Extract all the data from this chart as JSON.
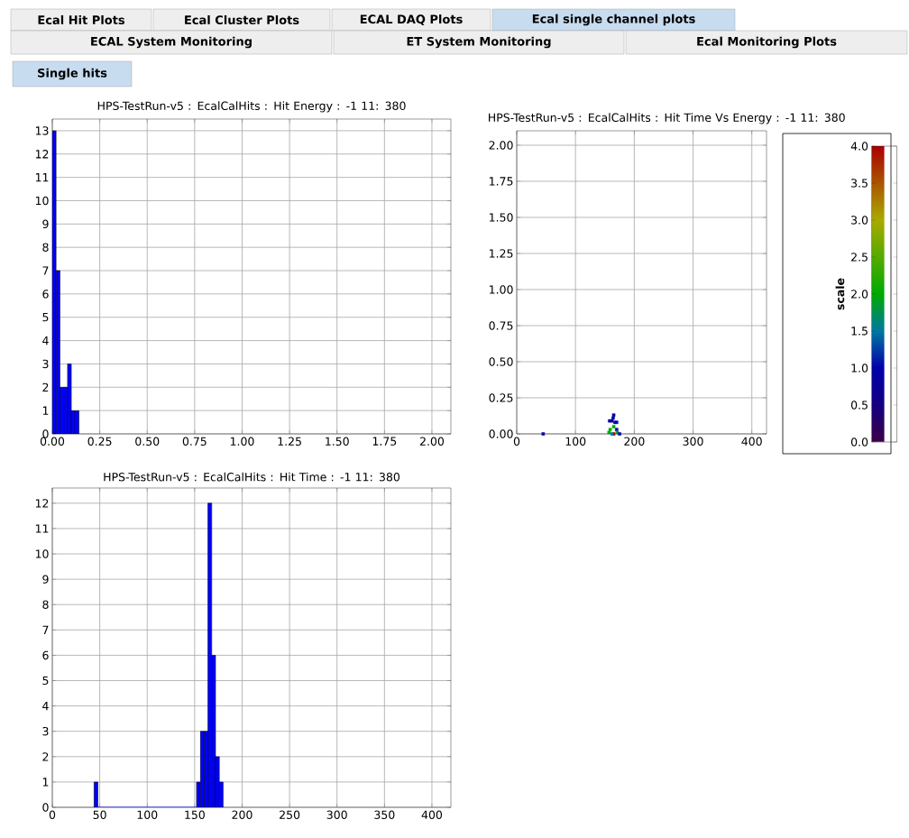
{
  "chart_data": [
    {
      "type": "other",
      "annotations": [
        "Ecal Hit Plots",
        "Ecal Cluster Plots",
        "ECAL DAQ Plots",
        "Ecal single channel plots",
        "ECAL System Monitoring",
        "ET System Monitoring",
        "Ecal Monitoring Plots",
        "Single hits"
      ]
    },
    {
      "type": "histogram",
      "title": "HPS-TestRun-v5 : EcalCalHits : Hit Energy : -1 11: 380",
      "bins": [
        0,
        0.02,
        0.04,
        0.06,
        0.08,
        0.1,
        0.12,
        0.14
      ],
      "values": [
        13,
        7,
        2,
        2,
        3,
        1,
        1
      ],
      "color": "#0000ff",
      "xlim": [
        0,
        2.1
      ],
      "ylim": [
        0,
        13.5
      ],
      "xticks": [
        {
          "value": 0,
          "label": "0.00"
        },
        {
          "value": 0.25,
          "label": "0.25"
        },
        {
          "value": 0.5,
          "label": "0.50"
        },
        {
          "value": 0.75,
          "label": "0.75"
        },
        {
          "value": 1,
          "label": "1.00"
        },
        {
          "value": 1.25,
          "label": "1.25"
        },
        {
          "value": 1.5,
          "label": "1.50"
        },
        {
          "value": 1.75,
          "label": "1.75"
        },
        {
          "value": 2,
          "label": "2.00"
        }
      ],
      "yticks": [
        0,
        1,
        2,
        3,
        4,
        5,
        6,
        7,
        8,
        9,
        10,
        11,
        12,
        13
      ],
      "grid": true
    },
    {
      "type": "scatter",
      "title": "HPS-TestRun-v5 : EcalCalHits : Hit Time Vs Energy : -1 11: 380",
      "x": [
        45,
        165,
        164,
        162,
        158,
        167,
        170,
        165,
        159,
        170,
        157,
        165,
        171,
        175,
        162
      ],
      "values": [
        0.0,
        0.13,
        0.11,
        0.09,
        0.09,
        0.08,
        0.08,
        0.05,
        0.03,
        0.03,
        0.01,
        0.0,
        0.01,
        0.0,
        0.0
      ],
      "cvalues": [
        1,
        1,
        1,
        1,
        1,
        1,
        1,
        2,
        2,
        1,
        2,
        4,
        2,
        1,
        1.5
      ],
      "marker": "square",
      "xlim": [
        0,
        425
      ],
      "ylim": [
        0,
        2.1
      ],
      "xticks": [
        0,
        100,
        200,
        300,
        400
      ],
      "yticks": [
        {
          "value": 0,
          "label": "0.00"
        },
        {
          "value": 0.25,
          "label": "0.25"
        },
        {
          "value": 0.5,
          "label": "0.50"
        },
        {
          "value": 0.75,
          "label": "0.75"
        },
        {
          "value": 1,
          "label": "1.00"
        },
        {
          "value": 1.25,
          "label": "1.25"
        },
        {
          "value": 1.5,
          "label": "1.50"
        },
        {
          "value": 1.75,
          "label": "1.75"
        },
        {
          "value": 2,
          "label": "2.00"
        }
      ],
      "clabel": "scale",
      "clim": [
        0,
        4
      ],
      "cticks": [
        {
          "value": 0,
          "label": "0.0"
        },
        {
          "value": 0.5,
          "label": "0.5"
        },
        {
          "value": 1,
          "label": "1.0"
        },
        {
          "value": 1.5,
          "label": "1.5"
        },
        {
          "value": 2,
          "label": "2.0"
        },
        {
          "value": 2.5,
          "label": "2.5"
        },
        {
          "value": 3,
          "label": "3.0"
        },
        {
          "value": 3.5,
          "label": "3.5"
        },
        {
          "value": 4,
          "label": "4.0"
        }
      ],
      "grid": true
    },
    {
      "type": "histogram",
      "title": "HPS-TestRun-v5 : EcalCalHits : Hit Time : -1 11: 380",
      "bins": [
        44,
        48,
        52,
        56,
        60,
        64,
        68,
        72,
        76,
        80,
        84,
        88,
        92,
        96,
        100,
        104,
        108,
        112,
        116,
        120,
        124,
        128,
        132,
        136,
        140,
        144,
        148,
        152,
        156,
        160,
        164,
        168,
        172,
        176,
        180
      ],
      "values": [
        1,
        0,
        0,
        0,
        0,
        0,
        0,
        0,
        0,
        0,
        0,
        0,
        0,
        0,
        0,
        0,
        0,
        0,
        0,
        0,
        0,
        0,
        0,
        0,
        0,
        0,
        0,
        1,
        3,
        3,
        12,
        6,
        2,
        1
      ],
      "color": "#0000ff",
      "xlim": [
        0,
        420
      ],
      "ylim": [
        0,
        12.6
      ],
      "xticks": [
        0,
        50,
        100,
        150,
        200,
        250,
        300,
        350,
        400
      ],
      "yticks": [
        0,
        1,
        2,
        3,
        4,
        5,
        6,
        7,
        8,
        9,
        10,
        11,
        12
      ],
      "grid": true
    }
  ]
}
